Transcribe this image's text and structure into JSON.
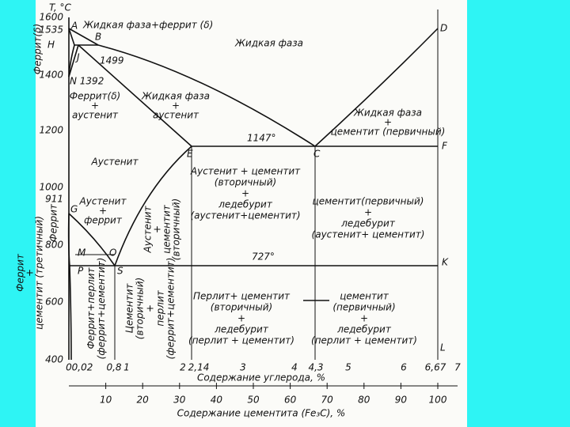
{
  "axes": {
    "temperature_label": "T, °C",
    "temperature_ticks": [
      "1600",
      "1535",
      "1400",
      "1200",
      "1000",
      "911",
      "800",
      "600",
      "400"
    ],
    "carbon_ticks": [
      "0",
      "0,02",
      "0,8",
      "1",
      "2",
      "2,14",
      "3",
      "4",
      "4,3",
      "5",
      "6",
      "6,67",
      "7"
    ],
    "carbon_title": "Содержание углерода, %",
    "cementite_ticks": [
      "10",
      "20",
      "30",
      "40",
      "50",
      "60",
      "70",
      "80",
      "90",
      "100"
    ],
    "cementite_title": "Содержание цементита (Fe₃C), %"
  },
  "points": [
    "A",
    "B",
    "H",
    "J",
    "N 1392",
    "1499",
    "E",
    "C",
    "D",
    "F",
    "G",
    "M",
    "O",
    "P",
    "S",
    "K",
    "L",
    "1147°",
    "727°"
  ],
  "regions": [
    {
      "lines": [
        "Жидкая фаза+феррит (δ)"
      ]
    },
    {
      "lines": [
        "Жидкая фаза"
      ]
    },
    {
      "lines": [
        "Феррит(δ)"
      ]
    },
    {
      "lines": [
        "Феррит(δ)",
        "+",
        "аустенит"
      ]
    },
    {
      "lines": [
        "Жидкая фаза",
        "+",
        "аустенит"
      ]
    },
    {
      "lines": [
        "Жидкая фаза",
        "+",
        "цементит (первичный)"
      ]
    },
    {
      "lines": [
        "Аустенит"
      ]
    },
    {
      "lines": [
        "Аустенит + цементит",
        "(вторичный)",
        "+",
        "ледебурит",
        "(аустенит+цементит)"
      ]
    },
    {
      "lines": [
        "цементит(первичный)",
        "+",
        "ледебурит",
        "(аустенит+ цементит)"
      ]
    },
    {
      "lines": [
        "Аустенит",
        "+",
        "феррит"
      ]
    },
    {
      "lines": [
        "Аустенит",
        "+",
        "цементит",
        "(вторичный)"
      ]
    },
    {
      "lines": [
        "Феррит"
      ]
    },
    {
      "lines": [
        "Феррит",
        "+",
        "цементит (третичный)"
      ]
    },
    {
      "lines": [
        "Феррит+перлит",
        "(феррит+цементит)"
      ]
    },
    {
      "lines": [
        "Цементит",
        "(вторичный)",
        "+",
        "перлит",
        "(феррит+цементит)"
      ]
    },
    {
      "lines": [
        "Перлит+ цементит",
        "(вторичный)",
        "+",
        "ледебурит",
        "(перлит + цементит)"
      ]
    },
    {
      "lines": [
        "цементит",
        "(первичный)",
        "+",
        "ледебурит",
        "(перлит + цементит)"
      ]
    }
  ]
}
